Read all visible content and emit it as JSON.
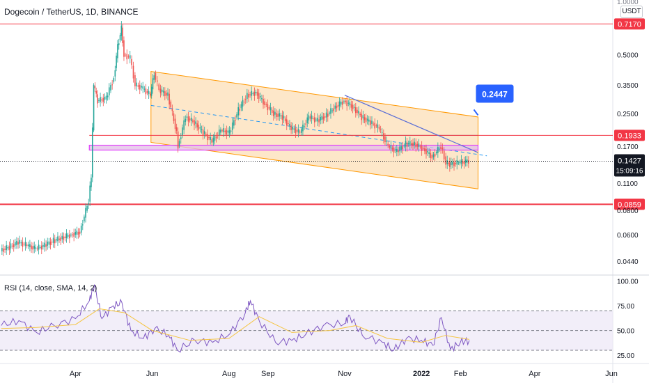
{
  "header": {
    "symbol_title": "Dogecoin / TetherUS, 1D, BINANCE",
    "rsi_title": "RSI (14, close, SMA, 14, 2)",
    "unit": "USDT",
    "top_cut_tick": "1.0000"
  },
  "chart_data": [
    {
      "type": "candlestick",
      "title": "Dogecoin / TetherUS, 1D, BINANCE",
      "y_scale": "log",
      "y_range": [
        0.038,
        0.95
      ],
      "y_ticks": [
        0.5,
        0.35,
        0.25,
        0.17,
        0.11,
        0.08,
        0.06,
        0.044
      ],
      "y_tick_labels": [
        "0.5000",
        "0.3500",
        "0.2500",
        "0.1700",
        "0.1100",
        "0.0800",
        "0.0600",
        "0.0440"
      ],
      "x_tick_labels": [
        "Apr",
        "Jun",
        "Aug",
        "Sep",
        "Nov",
        "2022",
        "Feb",
        "Apr",
        "Jun"
      ],
      "x_tick_dates": [
        "2021-04-01",
        "2021-06-01",
        "2021-08-01",
        "2021-09-01",
        "2021-11-01",
        "2022-01-01",
        "2022-02-01",
        "2022-04-01",
        "2022-06-01"
      ],
      "x_range": [
        "2021-01-31",
        "2022-06-01"
      ],
      "close_series": [
        [
          "2021-02-01",
          0.05
        ],
        [
          "2021-02-08",
          0.052
        ],
        [
          "2021-02-15",
          0.055
        ],
        [
          "2021-02-22",
          0.053
        ],
        [
          "2021-03-01",
          0.051
        ],
        [
          "2021-03-08",
          0.053
        ],
        [
          "2021-03-15",
          0.056
        ],
        [
          "2021-03-22",
          0.058
        ],
        [
          "2021-03-29",
          0.06
        ],
        [
          "2021-04-05",
          0.062
        ],
        [
          "2021-04-12",
          0.09
        ],
        [
          "2021-04-14",
          0.12
        ],
        [
          "2021-04-16",
          0.35
        ],
        [
          "2021-04-19",
          0.29
        ],
        [
          "2021-04-26",
          0.3
        ],
        [
          "2021-05-02",
          0.38
        ],
        [
          "2021-05-05",
          0.55
        ],
        [
          "2021-05-08",
          0.68
        ],
        [
          "2021-05-10",
          0.5
        ],
        [
          "2021-05-15",
          0.48
        ],
        [
          "2021-05-19",
          0.35
        ],
        [
          "2021-05-24",
          0.34
        ],
        [
          "2021-05-31",
          0.31
        ],
        [
          "2021-06-03",
          0.4
        ],
        [
          "2021-06-07",
          0.33
        ],
        [
          "2021-06-14",
          0.31
        ],
        [
          "2021-06-21",
          0.2
        ],
        [
          "2021-06-22",
          0.17
        ],
        [
          "2021-06-28",
          0.24
        ],
        [
          "2021-07-05",
          0.225
        ],
        [
          "2021-07-12",
          0.2
        ],
        [
          "2021-07-19",
          0.18
        ],
        [
          "2021-07-26",
          0.205
        ],
        [
          "2021-08-02",
          0.2
        ],
        [
          "2021-08-09",
          0.26
        ],
        [
          "2021-08-16",
          0.31
        ],
        [
          "2021-08-23",
          0.32
        ],
        [
          "2021-08-30",
          0.28
        ],
        [
          "2021-09-06",
          0.25
        ],
        [
          "2021-09-13",
          0.24
        ],
        [
          "2021-09-20",
          0.21
        ],
        [
          "2021-09-27",
          0.2
        ],
        [
          "2021-10-04",
          0.24
        ],
        [
          "2021-10-11",
          0.23
        ],
        [
          "2021-10-18",
          0.245
        ],
        [
          "2021-10-25",
          0.27
        ],
        [
          "2021-11-01",
          0.29
        ],
        [
          "2021-11-08",
          0.27
        ],
        [
          "2021-11-15",
          0.24
        ],
        [
          "2021-11-22",
          0.225
        ],
        [
          "2021-11-29",
          0.21
        ],
        [
          "2021-12-06",
          0.17
        ],
        [
          "2021-12-13",
          0.16
        ],
        [
          "2021-12-20",
          0.175
        ],
        [
          "2021-12-27",
          0.175
        ],
        [
          "2022-01-03",
          0.165
        ],
        [
          "2022-01-10",
          0.15
        ],
        [
          "2022-01-17",
          0.17
        ],
        [
          "2022-01-21",
          0.14
        ],
        [
          "2022-01-24",
          0.138
        ],
        [
          "2022-01-31",
          0.14
        ],
        [
          "2022-02-08",
          0.1427
        ]
      ],
      "annotations": {
        "channel": {
          "upper": [
            [
              "2021-05-31",
              0.41
            ],
            [
              "2022-02-15",
              0.24
            ]
          ],
          "lower": [
            [
              "2021-05-31",
              0.178
            ],
            [
              "2022-02-15",
              0.103
            ]
          ],
          "midline_dashed": [
            [
              "2021-05-31",
              0.275
            ],
            [
              "2022-02-22",
              0.152
            ]
          ]
        },
        "resistance_trendline": [
          [
            "2021-11-01",
            0.31
          ],
          [
            "2022-02-15",
            0.158
          ]
        ],
        "support_zone": [
          [
            "2021-04-12",
            0.168
          ],
          [
            "2022-02-15",
            0.162
          ]
        ],
        "horizontal_segment": {
          "from": "2021-07-26",
          "to": "2022-02-15",
          "value": 0.1933
        },
        "target_callout": {
          "label": "0.2447",
          "date": "2022-02-15",
          "value": 0.245
        }
      },
      "price_levels": [
        {
          "value": 0.717,
          "label": "0.7170"
        },
        {
          "value": 0.1933,
          "label": "0.1933"
        },
        {
          "value": 0.0859,
          "label": "0.0859"
        }
      ],
      "last_price": {
        "value": 0.1427,
        "label": "0.1427",
        "countdown": "15:09:16"
      }
    },
    {
      "type": "line",
      "title": "RSI (14, close, SMA, 14, 2)",
      "y_range": [
        18,
        104
      ],
      "y_ticks": [
        100,
        75,
        50,
        25
      ],
      "y_tick_labels": [
        "100.00",
        "75.00",
        "50.00",
        "25.00"
      ],
      "band": [
        30,
        70
      ],
      "series": [
        {
          "values": [
            [
              "2021-02-01",
              55
            ],
            [
              "2021-02-15",
              60
            ],
            [
              "2021-03-01",
              48
            ],
            [
              "2021-03-15",
              55
            ],
            [
              "2021-04-01",
              62
            ],
            [
              "2021-04-12",
              80
            ],
            [
              "2021-04-16",
              96
            ],
            [
              "2021-04-22",
              62
            ],
            [
              "2021-05-01",
              75
            ],
            [
              "2021-05-08",
              78
            ],
            [
              "2021-05-15",
              50
            ],
            [
              "2021-05-25",
              42
            ],
            [
              "2021-06-03",
              52
            ],
            [
              "2021-06-14",
              45
            ],
            [
              "2021-06-21",
              30
            ],
            [
              "2021-07-05",
              40
            ],
            [
              "2021-07-19",
              38
            ],
            [
              "2021-08-02",
              47
            ],
            [
              "2021-08-14",
              68
            ],
            [
              "2021-08-18",
              80
            ],
            [
              "2021-08-25",
              60
            ],
            [
              "2021-09-07",
              38
            ],
            [
              "2021-09-20",
              40
            ],
            [
              "2021-10-01",
              46
            ],
            [
              "2021-10-15",
              55
            ],
            [
              "2021-11-01",
              57
            ],
            [
              "2021-11-05",
              65
            ],
            [
              "2021-11-15",
              45
            ],
            [
              "2021-12-01",
              38
            ],
            [
              "2021-12-10",
              30
            ],
            [
              "2021-12-20",
              42
            ],
            [
              "2022-01-01",
              40
            ],
            [
              "2022-01-10",
              35
            ],
            [
              "2022-01-17",
              63
            ],
            [
              "2022-01-24",
              31
            ],
            [
              "2022-02-01",
              38
            ],
            [
              "2022-02-08",
              40
            ]
          ]
        },
        {
          "values": [
            [
              "2021-02-01",
              52
            ],
            [
              "2021-03-01",
              53
            ],
            [
              "2021-04-01",
              56
            ],
            [
              "2021-04-20",
              72
            ],
            [
              "2021-05-10",
              68
            ],
            [
              "2021-06-01",
              50
            ],
            [
              "2021-07-01",
              40
            ],
            [
              "2021-08-01",
              42
            ],
            [
              "2021-08-25",
              64
            ],
            [
              "2021-09-20",
              48
            ],
            [
              "2021-10-20",
              50
            ],
            [
              "2021-11-10",
              55
            ],
            [
              "2021-12-05",
              42
            ],
            [
              "2022-01-01",
              38
            ],
            [
              "2022-01-20",
              45
            ],
            [
              "2022-02-08",
              41
            ]
          ]
        }
      ]
    }
  ],
  "colors": {
    "candle_up": "#26a69a",
    "candle_down": "#ef5350",
    "level": "#f23645",
    "channel_fill": "#fde3c0",
    "channel_line": "#ff9800",
    "trendline": "#5b6fd6",
    "zone": "#e040fb",
    "callout": "#2962ff",
    "rsi_line": "#7e57c2",
    "rsi_ma": "#f5c542",
    "rsi_band": "#ede7f6"
  }
}
